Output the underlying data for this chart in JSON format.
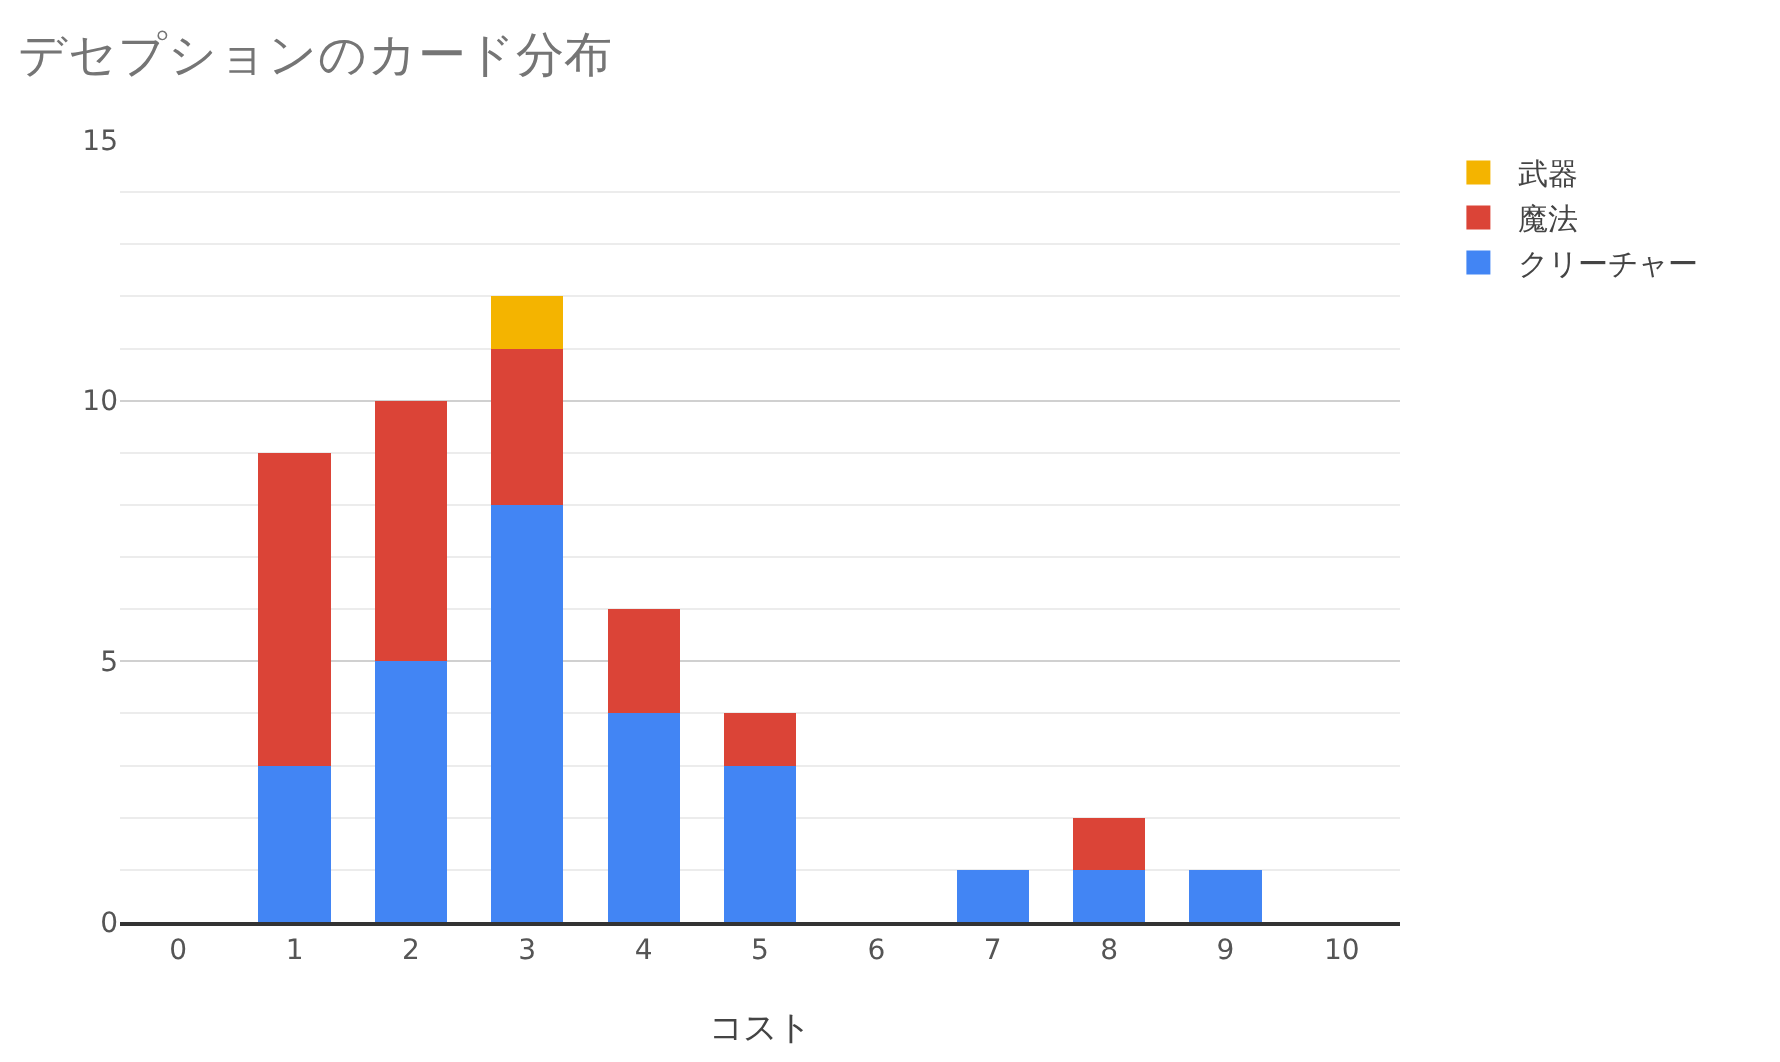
{
  "chart_data": {
    "type": "bar",
    "title": "デセプションのカード分布",
    "xlabel": "コスト",
    "categories": [
      "0",
      "1",
      "2",
      "3",
      "4",
      "5",
      "6",
      "7",
      "8",
      "9",
      "10"
    ],
    "stacked": true,
    "series": [
      {
        "name": "クリーチャー",
        "color": "#4285f4",
        "values": [
          0,
          3,
          5,
          8,
          4,
          3,
          0,
          1,
          1,
          1,
          0
        ]
      },
      {
        "name": "魔法",
        "color": "#db4437",
        "values": [
          0,
          6,
          5,
          3,
          2,
          1,
          0,
          0,
          1,
          0,
          0
        ]
      },
      {
        "name": "武器",
        "color": "#f4b400",
        "values": [
          0,
          0,
          0,
          1,
          0,
          0,
          0,
          0,
          0,
          0,
          0
        ]
      }
    ],
    "ylim": [
      0,
      15
    ],
    "yticks": [
      0,
      5,
      10,
      15
    ],
    "grid": "y",
    "legend": "top right"
  }
}
